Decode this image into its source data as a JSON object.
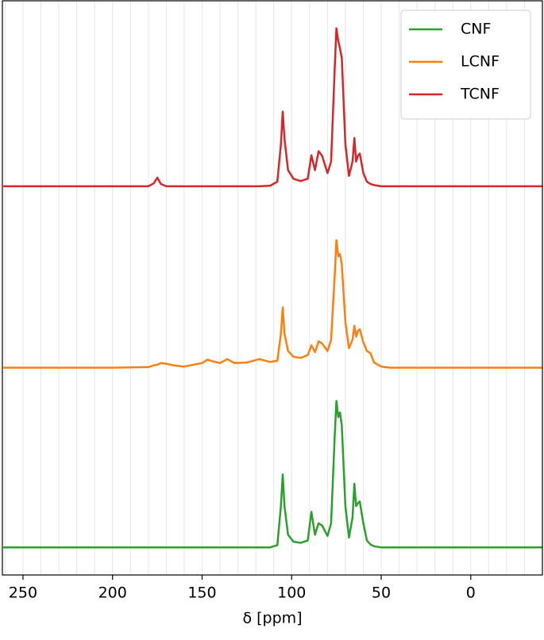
{
  "chart_data": {
    "type": "line",
    "xlabel": "δ [ppm]",
    "x": [
      261,
      240,
      220,
      200,
      180,
      177,
      175,
      173,
      170,
      166,
      160,
      150,
      147,
      144,
      140,
      136,
      132,
      125,
      118,
      112,
      108,
      106,
      105,
      104,
      102,
      99,
      95,
      91,
      89,
      87,
      85,
      83,
      80,
      78,
      76,
      75,
      74,
      73,
      72,
      70,
      68,
      66,
      65,
      64,
      63,
      62,
      60,
      58,
      56,
      54,
      50,
      45,
      40,
      20,
      0,
      -20,
      -40
    ],
    "series": [
      {
        "name": "CNF",
        "color": "#2ca02c",
        "values": [
          4.8,
          4.8,
          4.8,
          4.8,
          4.8,
          4.8,
          4.8,
          4.8,
          4.8,
          4.8,
          4.8,
          4.8,
          4.8,
          4.8,
          4.8,
          4.8,
          4.8,
          4.8,
          4.8,
          4.8,
          5.2,
          12,
          17.5,
          12,
          7,
          5.8,
          5.6,
          6,
          11,
          7,
          9,
          8.6,
          6.8,
          9,
          24,
          30.3,
          27.5,
          28.3,
          26,
          12,
          6.5,
          10,
          15.9,
          12,
          12.5,
          12.8,
          9,
          6,
          5.3,
          5,
          4.8,
          4.8,
          4.8,
          4.8,
          4.8,
          4.8,
          4.8
        ]
      },
      {
        "name": "LCNF",
        "color": "#ff7f0e",
        "values": [
          36.1,
          36.1,
          36.1,
          36.1,
          36.2,
          36.5,
          36.6,
          36.9,
          36.8,
          36.5,
          36.3,
          36.9,
          37.5,
          37.2,
          36.9,
          37.6,
          36.9,
          37,
          37.6,
          37.1,
          37.3,
          42,
          46.6,
          42,
          39,
          38,
          37.8,
          38.3,
          40,
          38.8,
          40.7,
          40.3,
          39,
          41,
          52,
          58.3,
          55.5,
          55.9,
          54,
          44,
          39.5,
          41,
          43.4,
          41.5,
          42.5,
          42.8,
          40.5,
          39,
          38.6,
          37,
          36.3,
          36.1,
          36.1,
          36.1,
          36.1,
          36.1,
          36.1
        ]
      },
      {
        "name": "TCNF",
        "color": "#d62728",
        "values": [
          67.7,
          67.7,
          67.7,
          67.7,
          67.7,
          68.2,
          69.2,
          68.1,
          67.7,
          67.7,
          67.7,
          67.7,
          67.7,
          67.7,
          67.7,
          67.7,
          67.7,
          67.7,
          67.7,
          67.8,
          68.5,
          75,
          80.7,
          76,
          70.5,
          69,
          68.6,
          69,
          73.1,
          70.5,
          73.8,
          73,
          70,
          72,
          88,
          95.2,
          93,
          91.7,
          90,
          75,
          69.5,
          72,
          76.1,
          72,
          73,
          73.4,
          70,
          68.5,
          68.1,
          67.9,
          67.7,
          67.7,
          67.7,
          67.7,
          67.7,
          67.7,
          67.7
        ]
      }
    ],
    "xlim": [
      261.5,
      -40
    ],
    "xticks": [
      250,
      200,
      150,
      100,
      50,
      0
    ],
    "minor_xticks": [
      260,
      250,
      240,
      230,
      220,
      210,
      200,
      190,
      180,
      170,
      160,
      150,
      140,
      130,
      120,
      110,
      100,
      90,
      80,
      70,
      60,
      50,
      40,
      30,
      20,
      10,
      0,
      -10,
      -20,
      -30
    ],
    "ylim": [
      0,
      100
    ],
    "grid": true,
    "legend": "upper right"
  }
}
